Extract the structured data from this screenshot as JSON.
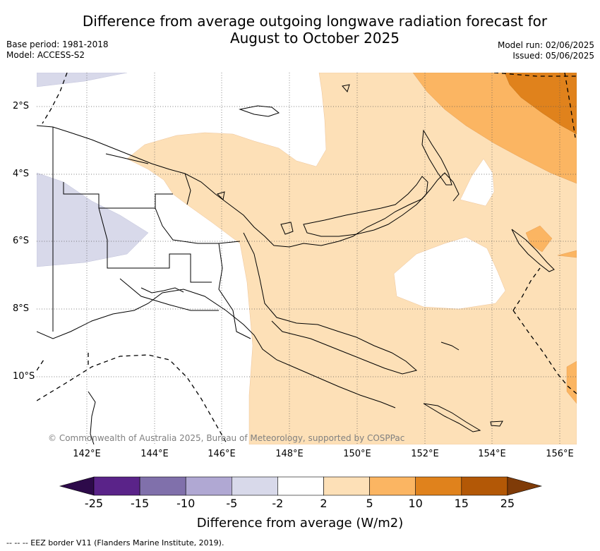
{
  "title_line1": "Difference from average outgoing longwave radiation forecast for",
  "title_line2": "August to October 2025",
  "base_period": "Base period: 1981-2018",
  "model": "Model: ACCESS-S2",
  "model_run": "Model run: 02/06/2025",
  "issued": "Issued: 05/06/2025",
  "copyright": "© Commonwealth of Australia 2025, Bureau of Meteorology, supported by COSPPac",
  "lat_labels": [
    "2°S",
    "4°S",
    "6°S",
    "8°S",
    "10°S"
  ],
  "lon_labels": [
    "142°E",
    "144°E",
    "146°E",
    "148°E",
    "150°E",
    "152°E",
    "154°E",
    "156°E"
  ],
  "colorbar": {
    "title": "Difference from average (W/m2)",
    "ticks": [
      "-25",
      "-15",
      "-10",
      "-5",
      "-2",
      "2",
      "5",
      "10",
      "15",
      "25"
    ],
    "colors": [
      "#2d0a4a",
      "#5a2389",
      "#8070ab",
      "#b0a8d3",
      "#d8d9ea",
      "#ffffff",
      "#fde0b7",
      "#fbb562",
      "#e0821c",
      "#b35806",
      "#7f3b08"
    ]
  },
  "footer": "--  --  -- EEZ border V11 (Flanders Marine Institute, 2019)."
}
